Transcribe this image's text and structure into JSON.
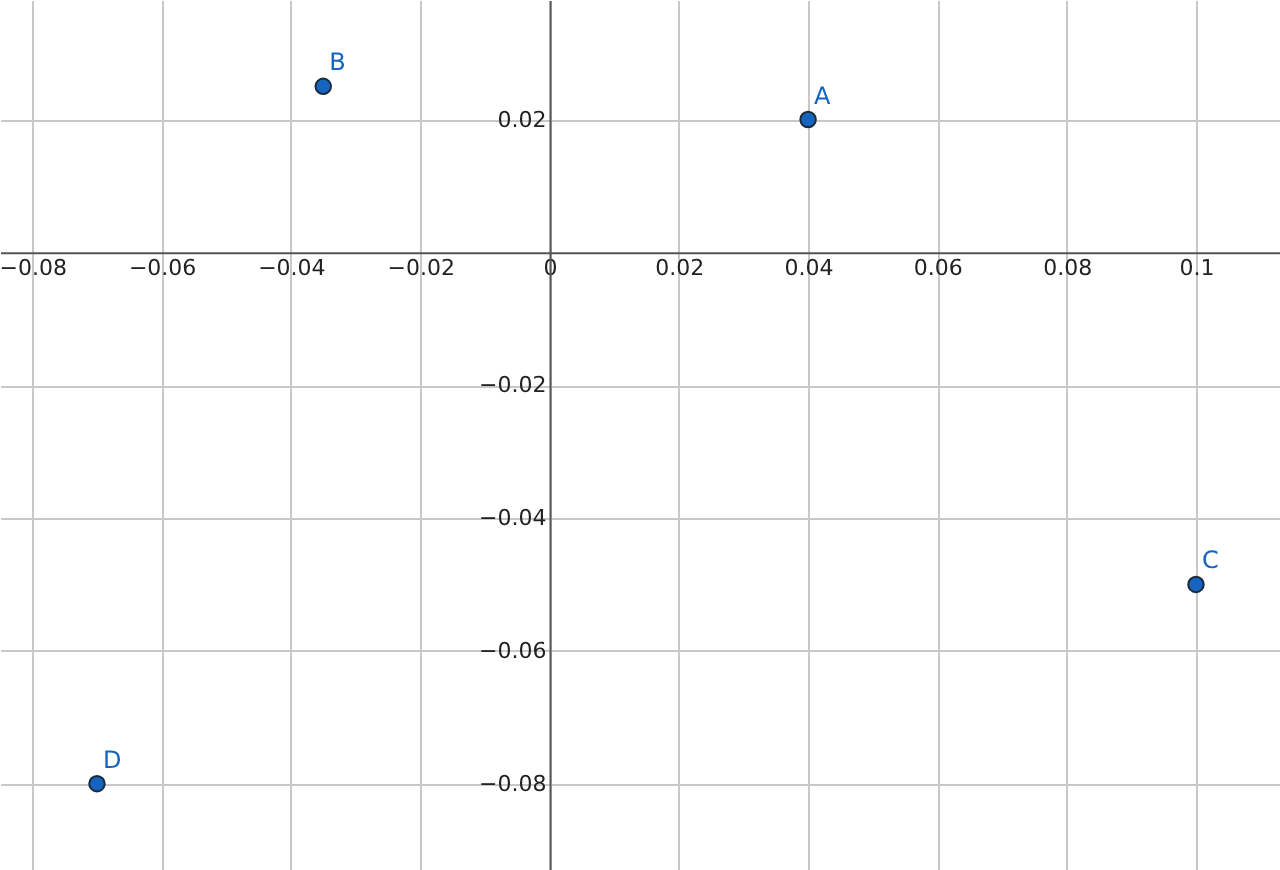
{
  "chart_data": {
    "type": "scatter",
    "marker": "circle",
    "grid": true,
    "xlim": [
      -0.085,
      0.113
    ],
    "ylim": [
      -0.093,
      0.038
    ],
    "xticks": [
      -0.08,
      -0.06,
      -0.04,
      -0.02,
      0,
      0.02,
      0.04,
      0.06,
      0.08,
      0.1
    ],
    "yticks": [
      -0.08,
      -0.06,
      -0.04,
      -0.02,
      0.02
    ],
    "series": [
      {
        "name": "A",
        "color": "#1565c0",
        "x": [
          0.04
        ],
        "values": [
          0.02
        ]
      },
      {
        "name": "B",
        "color": "#1565c0",
        "x": [
          -0.035
        ],
        "values": [
          0.025
        ]
      },
      {
        "name": "C",
        "color": "#1565c0",
        "x": [
          0.1
        ],
        "values": [
          -0.05
        ]
      },
      {
        "name": "D",
        "color": "#1565c0",
        "x": [
          -0.07
        ],
        "values": [
          -0.08
        ]
      }
    ]
  }
}
